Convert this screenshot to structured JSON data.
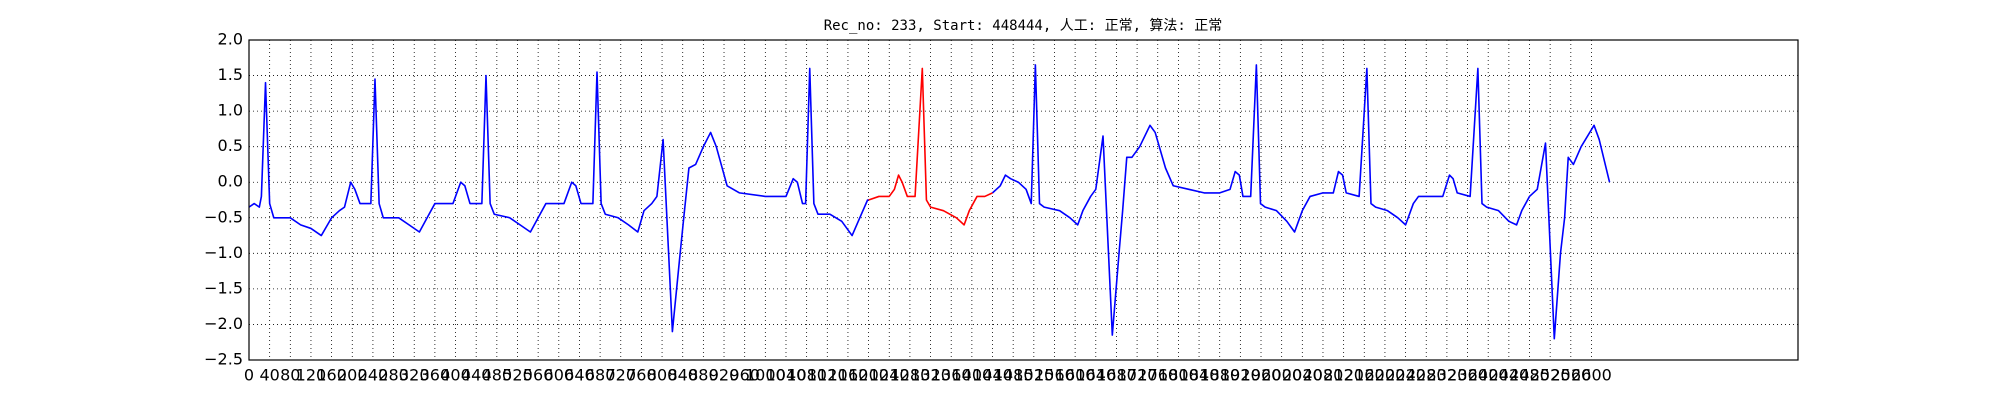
{
  "chart_data": {
    "type": "line",
    "title": "Rec_no: 233, Start: 448444, 人工: 正常, 算法: 正常",
    "xlim": [
      0,
      3000
    ],
    "xticks": [
      0,
      40,
      80,
      120,
      160,
      200,
      240,
      280,
      320,
      360,
      400,
      440,
      480,
      520,
      560,
      600,
      640,
      680,
      720,
      760,
      800,
      840,
      880,
      920,
      960,
      1000,
      1040,
      1080,
      1120,
      1160,
      1200,
      1240,
      1280,
      1320,
      1360,
      1400,
      1440,
      1480,
      1520,
      1560,
      1600,
      1640,
      1680,
      1720,
      1760,
      1800,
      1840,
      1880,
      1920,
      1960,
      2000,
      2040,
      2080,
      2120,
      2160,
      2200,
      2240,
      2280,
      2320,
      2360,
      2400,
      2440,
      2480,
      2520,
      2560,
      2600
    ],
    "ylim": [
      -2.5,
      2.0
    ],
    "yticks": [
      {
        "value": -2.5,
        "label": "−2.5"
      },
      {
        "value": -2.0,
        "label": "−2.0"
      },
      {
        "value": -1.5,
        "label": "−1.5"
      },
      {
        "value": -1.0,
        "label": "−1.0"
      },
      {
        "value": -0.5,
        "label": "−0.5"
      },
      {
        "value": 0,
        "label": "0.0"
      },
      {
        "value": 0.5,
        "label": "0.5"
      },
      {
        "value": 1.0,
        "label": "1.0"
      },
      {
        "value": 1.5,
        "label": "1.5"
      },
      {
        "value": 2.0,
        "label": "2.0"
      }
    ],
    "grid": true,
    "series": [
      {
        "color": "#0000ff",
        "x": [
          0,
          10,
          20,
          24,
          32,
          40,
          48,
          80,
          100,
          120,
          140,
          160,
          175,
          185,
          197,
          205,
          215,
          236,
          244,
          252,
          260,
          290,
          310,
          330,
          345,
          360,
          395,
          410,
          418,
          428,
          451,
          459,
          467,
          475,
          505,
          525,
          545,
          560,
          575,
          610,
          625,
          633,
          643,
          666,
          674,
          682,
          690,
          715,
          735,
          753,
          765,
          780,
          790,
          802,
          820,
          835,
          842,
          852,
          865,
          880,
          894,
          905,
          926,
          950,
          1000,
          1040,
          1054,
          1062,
          1072,
          1078,
          1086,
          1094,
          1102,
          1125,
          1148,
          1168,
          1180,
          1198,
          1200
        ],
        "values": [
          -0.35,
          -0.3,
          -0.35,
          -0.2,
          1.4,
          -0.3,
          -0.5,
          -0.5,
          -0.6,
          -0.65,
          -0.75,
          -0.5,
          -0.4,
          -0.35,
          0.0,
          -0.1,
          -0.3,
          -0.3,
          1.45,
          -0.3,
          -0.5,
          -0.5,
          -0.6,
          -0.7,
          -0.5,
          -0.3,
          -0.3,
          0.0,
          -0.05,
          -0.3,
          -0.3,
          1.5,
          -0.3,
          -0.45,
          -0.5,
          -0.6,
          -0.7,
          -0.5,
          -0.3,
          -0.3,
          0.0,
          -0.05,
          -0.3,
          -0.3,
          1.55,
          -0.3,
          -0.45,
          -0.5,
          -0.6,
          -0.7,
          -0.4,
          -0.3,
          -0.2,
          0.6,
          -2.1,
          -1.0,
          -0.5,
          0.2,
          0.25,
          0.5,
          0.7,
          0.5,
          -0.05,
          -0.15,
          -0.2,
          -0.2,
          0.05,
          0.0,
          -0.3,
          -0.3,
          1.6,
          -0.3,
          -0.45,
          -0.45,
          -0.55,
          -0.75,
          -0.55,
          -0.25,
          -0.25
        ]
      },
      {
        "color": "#ff0000",
        "x": [
          1200,
          1220,
          1240,
          1250,
          1258,
          1265,
          1275,
          1290,
          1304,
          1312,
          1320,
          1345,
          1370,
          1385,
          1395,
          1410,
          1425,
          1440
        ],
        "values": [
          -0.25,
          -0.2,
          -0.2,
          -0.1,
          0.1,
          0.0,
          -0.2,
          -0.2,
          1.6,
          -0.25,
          -0.35,
          -0.4,
          -0.5,
          -0.6,
          -0.4,
          -0.2,
          -0.2,
          -0.15
        ]
      },
      {
        "color": "#0000ff",
        "x": [
          1440,
          1455,
          1465,
          1475,
          1490,
          1505,
          1515,
          1523,
          1531,
          1540,
          1570,
          1590,
          1605,
          1615,
          1630,
          1640,
          1654,
          1672,
          1685,
          1692,
          1700,
          1710,
          1725,
          1745,
          1755,
          1775,
          1790,
          1820,
          1850,
          1880,
          1900,
          1910,
          1918,
          1925,
          1940,
          1951,
          1959,
          1968,
          1990,
          2010,
          2025,
          2040,
          2055,
          2080,
          2100,
          2110,
          2118,
          2125,
          2150,
          2165,
          2173,
          2182,
          2205,
          2225,
          2240,
          2255,
          2265,
          2290,
          2312,
          2325,
          2332,
          2340,
          2365,
          2380,
          2388,
          2397,
          2420,
          2440,
          2455,
          2465,
          2480,
          2495,
          2511,
          2528,
          2540,
          2548,
          2555,
          2565,
          2580,
          2605,
          2615,
          2635
        ],
        "values": [
          -0.15,
          -0.05,
          0.1,
          0.05,
          0.0,
          -0.1,
          -0.3,
          1.65,
          -0.3,
          -0.35,
          -0.4,
          -0.5,
          -0.6,
          -0.4,
          -0.2,
          -0.1,
          0.65,
          -2.15,
          -1.0,
          -0.4,
          0.35,
          0.35,
          0.5,
          0.8,
          0.7,
          0.2,
          -0.05,
          -0.1,
          -0.15,
          -0.15,
          -0.1,
          0.15,
          0.1,
          -0.2,
          -0.2,
          1.65,
          -0.3,
          -0.35,
          -0.4,
          -0.55,
          -0.7,
          -0.4,
          -0.2,
          -0.15,
          -0.15,
          0.15,
          0.1,
          -0.15,
          -0.2,
          1.6,
          -0.3,
          -0.35,
          -0.4,
          -0.5,
          -0.6,
          -0.3,
          -0.2,
          -0.2,
          -0.2,
          0.1,
          0.05,
          -0.15,
          -0.2,
          1.6,
          -0.3,
          -0.35,
          -0.4,
          -0.55,
          -0.6,
          -0.4,
          -0.2,
          -0.1,
          0.55,
          -2.2,
          -1.0,
          -0.5,
          0.35,
          0.25,
          0.5,
          0.8,
          0.6,
          0.0
        ]
      }
    ]
  }
}
